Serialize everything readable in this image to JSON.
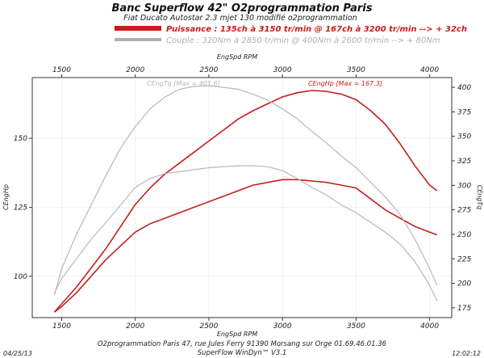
{
  "header": {
    "title": "Banc Superflow 42\" O2programmation Paris",
    "subtitle": "Fiat Ducato Autostar 2.3 mjet 130 modifié o2programmation"
  },
  "legend": [
    {
      "text": "Puissance : 135ch à 3150 tr/min @ 167ch à 3200 tr/min --> + 32ch",
      "color": "#cc1a1a"
    },
    {
      "text": "Couple : 320Nm à 2850 tr/min @ 400Nm à 2600 tr/min --> + 80Nm",
      "color": "#b0b0b0"
    }
  ],
  "footer": {
    "line1": "O2programmation Paris 47, rue Jules Ferry 91390 Morsang sur Orge 01.69.46.01.36",
    "line2": "SuperFlow WinDyn™ V3.1",
    "date": "04/25/13",
    "time": "12:02:12"
  },
  "chart_data": {
    "type": "line",
    "x_axis": {
      "label": "EngSpd RPM",
      "range": [
        1300,
        4150
      ],
      "ticks": [
        1500,
        2000,
        2500,
        3000,
        3500,
        4000
      ]
    },
    "y_left": {
      "label": "CEngHp",
      "range": [
        85,
        172
      ],
      "ticks": [
        100,
        125,
        150
      ]
    },
    "y_right": {
      "label": "CEngTq",
      "range": [
        165,
        410
      ],
      "ticks": [
        175,
        200,
        225,
        250,
        275,
        300,
        325,
        350,
        375,
        400
      ]
    },
    "annotations": [
      {
        "text": "CEngHp [Max = 167.3]",
        "color": "#cc1a1a",
        "series": "hp_modified"
      },
      {
        "text": "CEngTq [Max = 401.6]",
        "color": "#b5b5b5",
        "series": "torque_modified"
      }
    ],
    "series": [
      {
        "axis": "left",
        "color": "#c41e1e",
        "x": [
          1450,
          1500,
          1600,
          1700,
          1800,
          1900,
          2000,
          2100,
          2200,
          2300,
          2400,
          2500,
          2600,
          2700,
          2800,
          2900,
          3000,
          3100,
          3200,
          3300,
          3400,
          3500,
          3600,
          3700,
          3800,
          3900,
          4000,
          4050
        ],
        "y": [
          87,
          90,
          96,
          103,
          110,
          118,
          126,
          132,
          137,
          141,
          145,
          149,
          153,
          157,
          160,
          162.5,
          165,
          166.5,
          167.3,
          167,
          166,
          164,
          160,
          155,
          148,
          140,
          133,
          131
        ]
      },
      {
        "axis": "left",
        "color": "#c41e1e",
        "x": [
          1450,
          1500,
          1600,
          1700,
          1800,
          1900,
          2000,
          2100,
          2200,
          2300,
          2400,
          2500,
          2600,
          2700,
          2800,
          2900,
          3000,
          3100,
          3200,
          3300,
          3400,
          3500,
          3600,
          3700,
          3800,
          3900,
          4000,
          4050
        ],
        "y": [
          87,
          89,
          94,
          100,
          106,
          111,
          116,
          119,
          121,
          123,
          125,
          127,
          129,
          131,
          133,
          134,
          135,
          135,
          134.5,
          134,
          133,
          132,
          128,
          124,
          121,
          118,
          116,
          115
        ]
      },
      {
        "axis": "right",
        "color": "#b8b8b8",
        "x": [
          1450,
          1500,
          1600,
          1700,
          1800,
          1900,
          2000,
          2100,
          2200,
          2300,
          2400,
          2500,
          2600,
          2700,
          2800,
          2900,
          3000,
          3100,
          3200,
          3300,
          3400,
          3500,
          3600,
          3700,
          3800,
          3900,
          4000,
          4050
        ],
        "y": [
          188,
          215,
          250,
          280,
          310,
          338,
          360,
          378,
          390,
          398,
          401,
          401.6,
          400,
          398,
          393,
          387,
          378,
          368,
          355,
          343,
          330,
          318,
          303,
          288,
          270,
          245,
          215,
          198
        ]
      },
      {
        "axis": "right",
        "color": "#b8b8b8",
        "x": [
          1450,
          1500,
          1600,
          1700,
          1800,
          1900,
          2000,
          2100,
          2200,
          2300,
          2400,
          2500,
          2600,
          2700,
          2800,
          2900,
          3000,
          3100,
          3200,
          3300,
          3400,
          3500,
          3600,
          3700,
          3800,
          3900,
          4000,
          4050
        ],
        "y": [
          190,
          205,
          225,
          245,
          262,
          280,
          298,
          307,
          312,
          314,
          316,
          318,
          319,
          320,
          320,
          319,
          315,
          307,
          298,
          290,
          280,
          272,
          262,
          252,
          240,
          222,
          198,
          182
        ]
      }
    ]
  }
}
